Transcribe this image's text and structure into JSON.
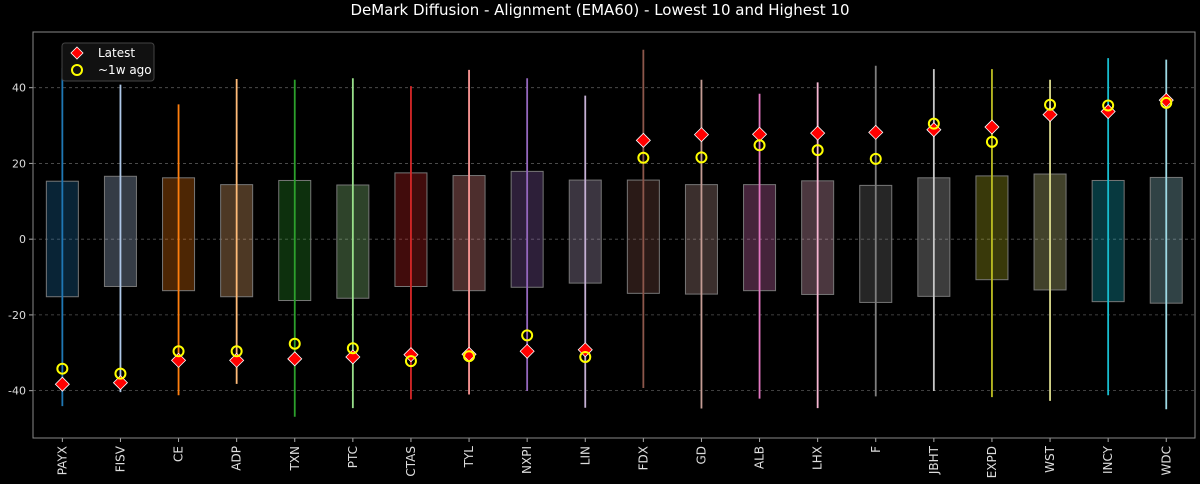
{
  "chart_data": {
    "type": "box-range",
    "title": "DeMark Diffusion - Alignment (EMA60) - Lowest 10 and Highest 10",
    "xlabel": "",
    "ylabel": "",
    "ylim": [
      -52.5,
      54.7
    ],
    "yticks": [
      -40,
      -20,
      0,
      20,
      40
    ],
    "grid": true,
    "legend_position": "top-left",
    "legend": [
      {
        "name": "Latest",
        "marker": "diamond",
        "color": "#ff0000"
      },
      {
        "name": "~1w ago",
        "marker": "circle",
        "color": "#ffff00"
      }
    ],
    "categories": [
      "PAYX",
      "FISV",
      "CE",
      "ADP",
      "TXN",
      "PTC",
      "CTAS",
      "TYL",
      "NXPI",
      "LIN",
      "FDX",
      "GD",
      "ALB",
      "LHX",
      "F",
      "JBHT",
      "EXPD",
      "WST",
      "INCY",
      "WDC"
    ],
    "colors": [
      "#1f77b4",
      "#aec7e8",
      "#ff7f0e",
      "#ffbb78",
      "#2ca02c",
      "#98df8a",
      "#d62728",
      "#ff9896",
      "#9467bd",
      "#c5b0d5",
      "#8c564b",
      "#c49c94",
      "#e377c2",
      "#f7b6d2",
      "#7f7f7f",
      "#c7c7c7",
      "#bcbd22",
      "#dbdb8d",
      "#17becf",
      "#9edae5"
    ],
    "whisker_high": [
      45.2,
      40.8,
      35.6,
      42.3,
      42.1,
      42.5,
      40.4,
      44.7,
      42.5,
      37.9,
      50.0,
      42.1,
      38.4,
      41.4,
      45.8,
      44.9,
      44.9,
      42.1,
      47.8,
      47.4
    ],
    "whisker_low": [
      -44.1,
      -40.4,
      -41.2,
      -38.2,
      -46.9,
      -44.6,
      -42.3,
      -41.0,
      -40.1,
      -44.5,
      -39.3,
      -44.7,
      -42.1,
      -44.6,
      -41.5,
      -40.1,
      -41.7,
      -42.7,
      -41.2,
      -44.9
    ],
    "box_high": [
      15.3,
      16.6,
      16.2,
      14.4,
      15.5,
      14.3,
      17.5,
      16.8,
      17.9,
      15.6,
      15.6,
      14.4,
      14.4,
      15.4,
      14.2,
      16.2,
      16.7,
      17.2,
      15.5,
      16.3
    ],
    "box_low": [
      -15.2,
      -12.5,
      -13.6,
      -15.2,
      -16.2,
      -15.6,
      -12.5,
      -13.6,
      -12.7,
      -11.6,
      -14.3,
      -14.5,
      -13.6,
      -14.6,
      -16.7,
      -15.1,
      -10.7,
      -13.4,
      -16.5,
      -16.9
    ],
    "series": [
      {
        "name": "Latest",
        "values": [
          -38.3,
          -37.9,
          -32.0,
          -32.0,
          -31.6,
          -31.1,
          -30.5,
          -30.4,
          -29.6,
          -29.2,
          26.1,
          27.6,
          27.7,
          28.0,
          28.2,
          28.9,
          29.6,
          32.9,
          33.7,
          36.7
        ]
      },
      {
        "name": "~1w ago",
        "values": [
          -34.2,
          -35.5,
          -29.6,
          -29.6,
          -27.6,
          -28.8,
          -32.2,
          -30.9,
          -25.4,
          -31.1,
          21.5,
          21.6,
          24.8,
          23.5,
          21.2,
          30.5,
          25.7,
          35.5,
          35.3,
          36.0
        ]
      }
    ]
  }
}
